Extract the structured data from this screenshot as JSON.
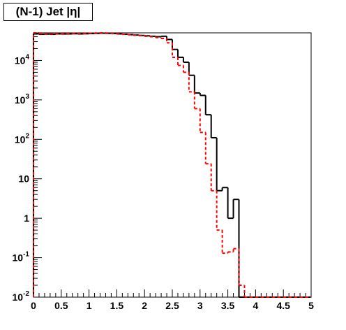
{
  "chart_data": {
    "type": "step-histogram",
    "title": "(N-1) Jet |η|",
    "xlabel": "",
    "ylabel": "",
    "xlim": [
      0,
      5
    ],
    "ylim": [
      0.01,
      50000
    ],
    "yscale": "log",
    "grid": false,
    "x_ticks": [
      {
        "v": 0,
        "label": "0"
      },
      {
        "v": 0.5,
        "label": "0.5"
      },
      {
        "v": 1,
        "label": "1"
      },
      {
        "v": 1.5,
        "label": "1.5"
      },
      {
        "v": 2,
        "label": "2"
      },
      {
        "v": 2.5,
        "label": "2.5"
      },
      {
        "v": 3,
        "label": "3"
      },
      {
        "v": 3.5,
        "label": "3.5"
      },
      {
        "v": 4,
        "label": "4"
      },
      {
        "v": 4.5,
        "label": "4.5"
      },
      {
        "v": 5,
        "label": "5"
      }
    ],
    "y_ticks": [
      {
        "v": 0.01,
        "base": "10",
        "exp": "-2"
      },
      {
        "v": 0.1,
        "base": "10",
        "exp": "-1"
      },
      {
        "v": 1,
        "base": "1",
        "exp": ""
      },
      {
        "v": 10,
        "base": "10",
        "exp": ""
      },
      {
        "v": 100,
        "base": "10",
        "exp": "2"
      },
      {
        "v": 1000,
        "base": "10",
        "exp": "3"
      },
      {
        "v": 10000,
        "base": "10",
        "exp": "4"
      }
    ],
    "bin_edges": [
      0.0,
      0.1,
      0.2,
      0.3,
      0.4,
      0.5,
      0.6,
      0.7,
      0.8,
      0.9,
      1.0,
      1.1,
      1.2,
      1.3,
      1.4,
      1.5,
      1.6,
      1.7,
      1.8,
      1.9,
      2.0,
      2.1,
      2.2,
      2.3,
      2.4,
      2.5,
      2.6,
      2.7,
      2.8,
      2.9,
      3.0,
      3.1,
      3.2,
      3.3,
      3.4,
      3.5,
      3.6,
      3.7,
      3.8,
      3.9,
      4.0,
      4.1,
      4.2,
      4.3,
      4.4,
      4.5,
      4.6,
      4.7,
      4.8,
      4.9,
      5.0
    ],
    "series": [
      {
        "color": "#000000",
        "style": "solid",
        "values": [
          47000,
          46000,
          46500,
          46000,
          47000,
          46800,
          47000,
          47500,
          47000,
          47500,
          48000,
          48500,
          49000,
          48500,
          48000,
          47000,
          46000,
          45000,
          44000,
          43000,
          42000,
          41000,
          40000,
          41000,
          34000,
          19000,
          12000,
          9000,
          4200,
          1500,
          1300,
          420,
          110,
          5,
          6,
          1,
          3,
          0,
          0,
          0,
          0,
          0,
          0,
          0,
          0,
          0,
          0,
          0,
          0,
          0
        ]
      },
      {
        "color": "#ff0000",
        "style": "dashed",
        "values": [
          50000,
          48000,
          47500,
          47000,
          47500,
          47800,
          48000,
          48500,
          48000,
          48500,
          49000,
          49500,
          50000,
          49500,
          48000,
          47500,
          46000,
          45000,
          43500,
          42500,
          41000,
          40000,
          38000,
          36000,
          28000,
          12000,
          7500,
          5000,
          1600,
          600,
          150,
          24,
          5,
          0.5,
          0.13,
          0.14,
          0.17,
          0.02,
          0.01,
          0.01,
          0.01,
          0.01,
          0.01,
          0.01,
          0.01,
          0.01,
          0.01,
          0.01,
          0.01,
          0.01
        ]
      }
    ]
  }
}
